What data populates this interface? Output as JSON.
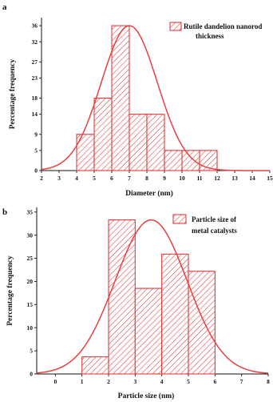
{
  "chart_data": [
    {
      "type": "bar",
      "panel_label": "a",
      "title": "",
      "xlabel": "Diameter (nm)",
      "ylabel": "Percentage frequency",
      "xlim": [
        2,
        15
      ],
      "ylim": [
        0,
        38
      ],
      "x_ticks": [
        2,
        3,
        4,
        5,
        6,
        7,
        8,
        9,
        10,
        11,
        12,
        13,
        14,
        15
      ],
      "y_ticks": [
        0,
        5,
        9,
        14,
        18,
        23,
        27,
        32,
        36
      ],
      "bin_width": 1,
      "bins": [
        {
          "start": 4,
          "end": 5,
          "value": 9
        },
        {
          "start": 5,
          "end": 6,
          "value": 18
        },
        {
          "start": 6,
          "end": 7,
          "value": 36
        },
        {
          "start": 7,
          "end": 8,
          "value": 14
        },
        {
          "start": 8,
          "end": 9,
          "value": 14
        },
        {
          "start": 9,
          "end": 10,
          "value": 5
        },
        {
          "start": 10,
          "end": 11,
          "value": 5
        },
        {
          "start": 11,
          "end": 12,
          "value": 5
        }
      ],
      "fit_curve": {
        "type": "gaussian",
        "mean": 7.0,
        "sigma": 1.6,
        "peak": 36
      },
      "legend": {
        "label_line1": "Rutile dandelion nanorod",
        "label_line2": "thickness",
        "placement": "top-right"
      },
      "grid": false,
      "colors": {
        "bar_edge": "#e03c3c",
        "hatch": "#e03c3c",
        "curve": "#e84040"
      }
    },
    {
      "type": "bar",
      "panel_label": "b",
      "title": "",
      "xlabel": "Particle size (nm)",
      "ylabel": "Percentage frequency",
      "xlim": [
        -0.7,
        8
      ],
      "ylim": [
        0,
        36
      ],
      "x_ticks": [
        0,
        1,
        2,
        3,
        4,
        5,
        6,
        7,
        8
      ],
      "y_ticks": [
        0,
        5,
        10,
        15,
        20,
        25,
        30,
        35
      ],
      "bin_width": 1,
      "bins": [
        {
          "start": 1,
          "end": 2,
          "value": 3.7
        },
        {
          "start": 2,
          "end": 3,
          "value": 33.3
        },
        {
          "start": 3,
          "end": 4,
          "value": 18.5
        },
        {
          "start": 4,
          "end": 5,
          "value": 25.9
        },
        {
          "start": 5,
          "end": 6,
          "value": 22.2
        }
      ],
      "fit_curve": {
        "type": "gaussian",
        "mean": 3.6,
        "sigma": 1.35,
        "peak": 33.3
      },
      "legend": {
        "label_line1": "Particle size of",
        "label_line2": "metal catalysts",
        "placement": "top-right"
      },
      "grid": false,
      "colors": {
        "bar_edge": "#e03c3c",
        "hatch": "#e03c3c",
        "curve": "#e84040"
      }
    }
  ]
}
